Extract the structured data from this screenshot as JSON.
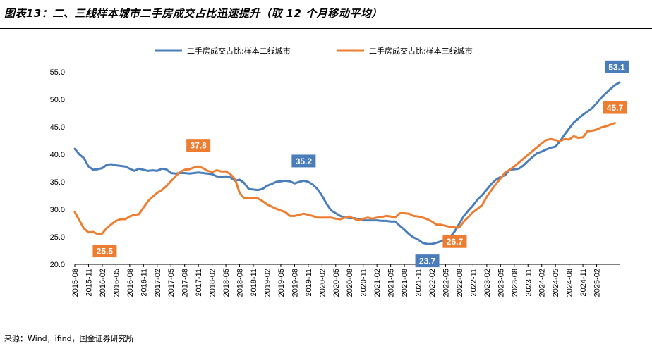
{
  "title": "图表13：二、三线样本城市二手房成交占比迅速提升（取 12 个月移动平均）",
  "source": "来源：Wind，ifind，国金证券研究所",
  "chart_data": {
    "type": "line",
    "ylim": [
      20,
      55
    ],
    "yticks": [
      "55.0",
      "50.0",
      "45.0",
      "40.0",
      "35.0",
      "30.0",
      "25.0",
      "20.0"
    ],
    "xtick_labels": [
      "2015-08",
      "2015-11",
      "2016-02",
      "2016-05",
      "2016-08",
      "2016-11",
      "2017-02",
      "2017-05",
      "2017-08",
      "2017-11",
      "2018-02",
      "2018-05",
      "2018-08",
      "2018-11",
      "2019-02",
      "2019-05",
      "2019-08",
      "2019-11",
      "2020-02",
      "2020-05",
      "2020-08",
      "2020-11",
      "2021-02",
      "2021-05",
      "2021-08",
      "2021-11",
      "2022-02",
      "2022-05",
      "2022-08",
      "2022-11",
      "2023-02",
      "2023-05",
      "2023-08",
      "2023-11",
      "2024-02",
      "2024-05",
      "2024-08",
      "2024-11",
      "2025-02"
    ],
    "legend_position": "top-center",
    "series": [
      {
        "name": "二手房成交占比:样本二线城市",
        "color": "#4a7ebb",
        "values": [
          41.0,
          40.0,
          39.3,
          37.8,
          37.2,
          37.3,
          37.5,
          38.1,
          38.2,
          38.0,
          37.9,
          37.8,
          37.4,
          37.0,
          37.4,
          37.2,
          37.0,
          37.1,
          37.0,
          37.4,
          37.3,
          36.6,
          36.5,
          36.6,
          36.6,
          36.5,
          36.6,
          36.7,
          36.6,
          36.5,
          36.4,
          36.0,
          35.9,
          36.0,
          35.8,
          35.2,
          35.4,
          34.8,
          33.7,
          33.6,
          33.5,
          33.7,
          34.3,
          34.6,
          35.0,
          35.1,
          35.2,
          35.1,
          34.7,
          35.0,
          35.2,
          35.0,
          34.5,
          33.7,
          32.5,
          31.0,
          29.8,
          29.3,
          28.8,
          28.5,
          28.4,
          28.4,
          28.2,
          28.0,
          28.0,
          28.0,
          28.0,
          27.9,
          27.9,
          27.8,
          27.8,
          27.0,
          26.3,
          25.5,
          24.9,
          24.5,
          23.9,
          23.7,
          23.7,
          23.9,
          24.2,
          24.6,
          25.0,
          26.0,
          27.4,
          28.8,
          29.8,
          30.7,
          31.8,
          32.6,
          33.6,
          34.6,
          35.4,
          35.9,
          36.2,
          37.2,
          37.3,
          37.4,
          38.0,
          38.8,
          39.5,
          40.2,
          40.5,
          40.9,
          41.2,
          41.4,
          42.4,
          43.6,
          44.7,
          45.8,
          46.5,
          47.2,
          47.8,
          48.4,
          49.3,
          50.3,
          51.1,
          51.9,
          52.6,
          53.1
        ],
        "labeled_points": [
          {
            "index": 50,
            "label": "35.2"
          },
          {
            "index": 77,
            "label": "23.7"
          },
          {
            "index": 119,
            "label": "53.1"
          }
        ]
      },
      {
        "name": "二手房成交占比:样本三线城市",
        "color": "#ed7d31",
        "values": [
          29.5,
          28.0,
          26.5,
          25.8,
          25.9,
          25.5,
          25.6,
          26.6,
          27.3,
          27.9,
          28.2,
          28.2,
          28.7,
          29.0,
          29.1,
          30.3,
          31.5,
          32.3,
          33.0,
          33.5,
          34.2,
          35.1,
          36.0,
          36.8,
          37.2,
          37.3,
          37.6,
          37.8,
          37.5,
          37.0,
          36.8,
          37.1,
          36.9,
          36.9,
          36.4,
          35.5,
          33.0,
          32.0,
          32.0,
          32.0,
          32.0,
          31.5,
          30.9,
          30.5,
          30.1,
          29.8,
          29.5,
          28.8,
          28.8,
          29.0,
          29.2,
          29.0,
          28.8,
          28.5,
          28.5,
          28.5,
          28.5,
          28.3,
          28.2,
          28.5,
          28.7,
          28.3,
          28.0,
          28.3,
          28.5,
          28.3,
          28.5,
          28.6,
          28.8,
          28.7,
          28.5,
          29.3,
          29.3,
          29.2,
          28.8,
          28.7,
          28.5,
          28.2,
          27.8,
          27.2,
          27.2,
          27.0,
          26.8,
          26.7,
          26.7,
          27.8,
          28.6,
          29.5,
          30.1,
          30.8,
          32.3,
          33.5,
          34.6,
          35.6,
          36.7,
          37.2,
          37.8,
          38.5,
          39.2,
          39.9,
          40.6,
          41.3,
          42.0,
          42.6,
          42.8,
          42.6,
          42.4,
          42.8,
          42.7,
          43.3,
          43.0,
          43.1,
          44.2,
          44.3,
          44.5,
          44.9,
          45.1,
          45.4,
          45.7
        ],
        "labeled_points": [
          {
            "index": 5,
            "label": "25.5"
          },
          {
            "index": 27,
            "label": "37.8"
          },
          {
            "index": 83,
            "label": "26.7"
          },
          {
            "index": 118,
            "label": "45.7"
          }
        ]
      }
    ]
  }
}
